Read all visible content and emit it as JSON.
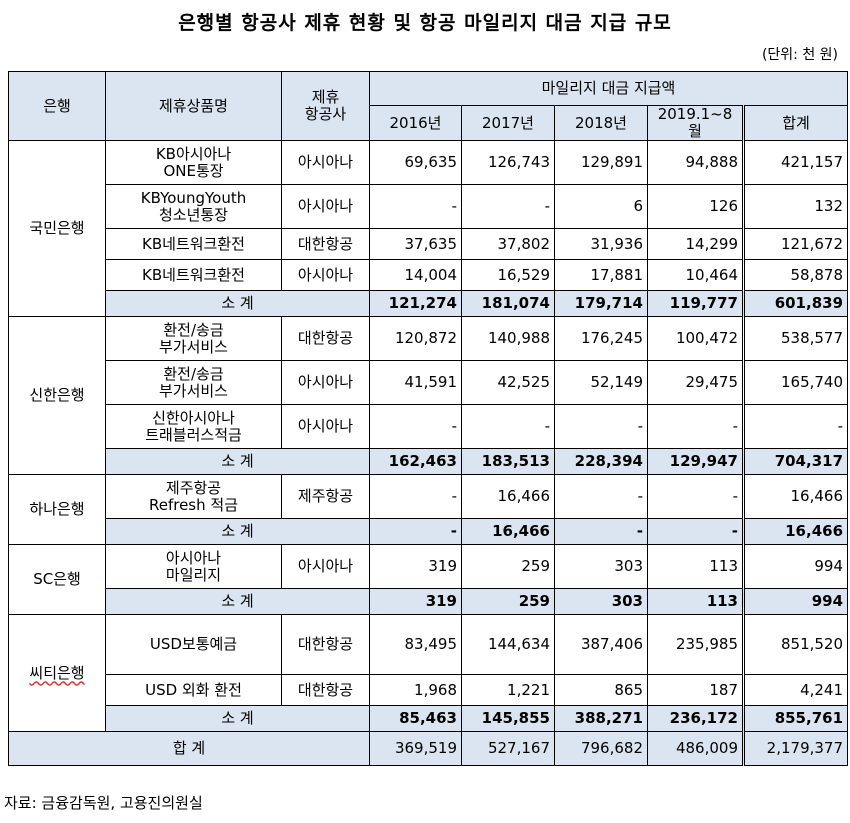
{
  "title": "은행별 항공사 제휴 현황 및 항공 마일리지 대금 지급 규모",
  "unit": "(단위: 천 원)",
  "headers": {
    "bank": "은행",
    "product": "제휴상품명",
    "airline_l1": "제휴",
    "airline_l2": "항공사",
    "mileage": "마일리지 대금 지급액",
    "years": [
      "2016년",
      "2017년",
      "2018년",
      "2019.1~8월",
      "합계"
    ]
  },
  "subtotal_label": "소 계",
  "grand_label": "합 계",
  "groups": [
    {
      "bank": "국민은행",
      "rows": [
        {
          "product": [
            "KB아시아나",
            "ONE통장"
          ],
          "airline": "아시아나",
          "values": [
            "69,635",
            "126,743",
            "129,891",
            "94,888",
            "421,157"
          ]
        },
        {
          "product": [
            "KBYoungYouth",
            "청소년통장"
          ],
          "airline": "아시아나",
          "values": [
            "-",
            "-",
            "6",
            "126",
            "132"
          ]
        },
        {
          "product": [
            "KB네트워크환전"
          ],
          "airline": "대한항공",
          "values": [
            "37,635",
            "37,802",
            "31,936",
            "14,299",
            "121,672"
          ]
        },
        {
          "product": [
            "KB네트워크환전"
          ],
          "airline": "아시아나",
          "values": [
            "14,004",
            "16,529",
            "17,881",
            "10,464",
            "58,878"
          ]
        }
      ],
      "subtotal": [
        "121,274",
        "181,074",
        "179,714",
        "119,777",
        "601,839"
      ]
    },
    {
      "bank": "신한은행",
      "rows": [
        {
          "product": [
            "환전/송금",
            "부가서비스"
          ],
          "airline": "대한항공",
          "values": [
            "120,872",
            "140,988",
            "176,245",
            "100,472",
            "538,577"
          ]
        },
        {
          "product": [
            "환전/송금",
            "부가서비스"
          ],
          "airline": "아시아나",
          "values": [
            "41,591",
            "42,525",
            "52,149",
            "29,475",
            "165,740"
          ]
        },
        {
          "product": [
            "신한아시아나",
            "트래블러스적금"
          ],
          "airline": "아시아나",
          "values": [
            "-",
            "-",
            "-",
            "-",
            "-"
          ]
        }
      ],
      "subtotal": [
        "162,463",
        "183,513",
        "228,394",
        "129,947",
        "704,317"
      ]
    },
    {
      "bank": "하나은행",
      "rows": [
        {
          "product": [
            "제주항공",
            "Refresh 적금"
          ],
          "airline": "제주항공",
          "values": [
            "-",
            "16,466",
            "-",
            "-",
            "16,466"
          ]
        }
      ],
      "subtotal": [
        "-",
        "16,466",
        "-",
        "-",
        "16,466"
      ]
    },
    {
      "bank": "SC은행",
      "rows": [
        {
          "product": [
            "아시아나",
            "마일리지"
          ],
          "airline": "아시아나",
          "values": [
            "319",
            "259",
            "303",
            "113",
            "994"
          ]
        }
      ],
      "subtotal": [
        "319",
        "259",
        "303",
        "113",
        "994"
      ]
    },
    {
      "bank": "씨티은행",
      "rows": [
        {
          "product": [
            "USD보통예금"
          ],
          "airline": "대한항공",
          "values": [
            "83,495",
            "144,634",
            "387,406",
            "235,985",
            "851,520"
          ]
        },
        {
          "product": [
            "USD 외화 환전"
          ],
          "airline": "대한항공",
          "values": [
            "1,968",
            "1,221",
            "865",
            "187",
            "4,241"
          ]
        }
      ],
      "subtotal": [
        "85,463",
        "145,855",
        "388,271",
        "236,172",
        "855,761"
      ]
    }
  ],
  "grand_total": [
    "369,519",
    "527,167",
    "796,682",
    "486,009",
    "2,179,377"
  ],
  "source": "자료: 금융감독원, 고용진의원실"
}
